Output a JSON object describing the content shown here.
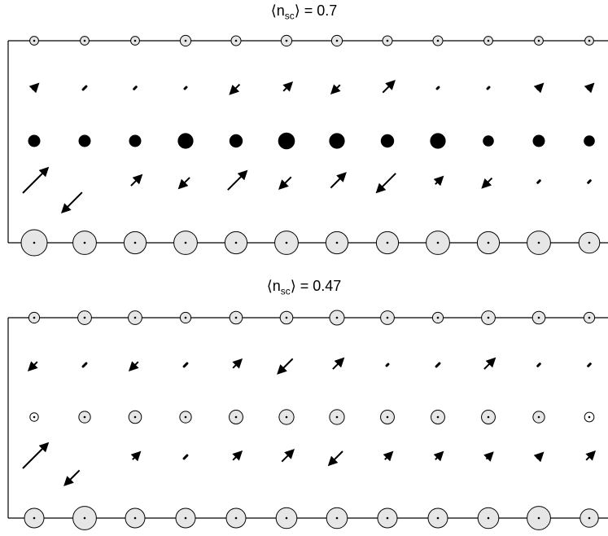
{
  "panels": [
    {
      "title": {
        "left": "⟨n",
        "sub": "sc",
        "right": "⟩ = 0.7"
      },
      "site_fill": "#000000",
      "middle_row_filled": true,
      "top_row_sizes": [
        0.9,
        0.9,
        0.9,
        1.1,
        1.0,
        1.1,
        1.1,
        1.0,
        1.0,
        0.9,
        0.9,
        0.9
      ],
      "middle_row_sizes": [
        1.0,
        1.0,
        1.0,
        1.3,
        1.1,
        1.4,
        1.3,
        1.1,
        1.3,
        0.9,
        1.0,
        0.9
      ],
      "bottom_row_sizes": [
        2.0,
        1.8,
        1.7,
        1.8,
        1.7,
        1.8,
        1.7,
        1.7,
        1.8,
        1.7,
        1.8,
        1.6
      ],
      "spin_row1": [
        [
          1,
          1,
          0.35
        ],
        [
          1,
          1,
          0.3
        ],
        [
          1,
          1,
          0.2
        ],
        [
          1,
          1,
          0.15
        ],
        [
          -1,
          -1,
          0.7
        ],
        [
          1,
          1,
          0.6
        ],
        [
          -1,
          -1,
          0.6
        ],
        [
          1,
          1,
          0.9
        ],
        [
          1,
          1,
          0.15
        ],
        [
          1,
          1,
          0.15
        ],
        [
          1,
          1,
          0.35
        ],
        [
          1,
          1,
          0.35
        ]
      ],
      "spin_row2a": [
        [
          1,
          1,
          2.2
        ],
        [
          1,
          1,
          0.0
        ],
        [
          1,
          1,
          0.8
        ],
        [
          -1,
          -1,
          0.8
        ],
        [
          1,
          1,
          1.6
        ],
        [
          -1,
          -1,
          0.9
        ],
        [
          1,
          1,
          1.2
        ],
        [
          -1,
          -1,
          1.6
        ],
        [
          1,
          1,
          0.5
        ],
        [
          -1,
          -1,
          0.7
        ],
        [
          1,
          1,
          0.2
        ],
        [
          1,
          1,
          0.2
        ]
      ],
      "spin_row2b": [
        [
          -1,
          -1,
          1.7
        ],
        [
          0,
          0,
          0
        ],
        [
          0,
          0,
          0
        ],
        [
          0,
          0,
          0
        ],
        [
          0,
          0,
          0
        ],
        [
          0,
          0,
          0
        ],
        [
          0,
          0,
          0
        ],
        [
          0,
          0,
          0
        ],
        [
          0,
          0,
          0
        ],
        [
          0,
          0,
          0
        ],
        [
          0,
          0,
          0
        ],
        [
          0,
          0,
          0
        ]
      ]
    },
    {
      "title": {
        "left": "⟨n",
        "sub": "sc",
        "right": "⟩ = 0.47"
      },
      "site_fill": "#ffffff",
      "middle_row_filled": false,
      "top_row_sizes": [
        1.1,
        1.4,
        1.4,
        1.1,
        1.3,
        1.3,
        1.5,
        1.4,
        1.1,
        1.4,
        1.3,
        1.1
      ],
      "middle_row_sizes": [
        0.8,
        1.1,
        1.2,
        1.1,
        1.3,
        1.4,
        1.4,
        1.3,
        1.3,
        1.3,
        1.1,
        0.9
      ],
      "bottom_row_sizes": [
        1.5,
        1.8,
        1.5,
        1.5,
        1.5,
        1.6,
        1.6,
        1.5,
        1.5,
        1.6,
        1.8,
        1.4
      ],
      "spin_row1": [
        [
          -1,
          -1,
          0.6
        ],
        [
          1,
          1,
          0.3
        ],
        [
          -1,
          -1,
          0.6
        ],
        [
          1,
          1,
          0.3
        ],
        [
          1,
          1,
          0.6
        ],
        [
          -1,
          -1,
          1.2
        ],
        [
          1,
          1,
          0.8
        ],
        [
          1,
          1,
          0.15
        ],
        [
          1,
          1,
          0.3
        ],
        [
          1,
          1,
          0.8
        ],
        [
          1,
          1,
          0.2
        ],
        [
          1,
          1,
          0.2
        ]
      ],
      "spin_row2a": [
        [
          1,
          1,
          2.2
        ],
        [
          1,
          1,
          0.0
        ],
        [
          1,
          1,
          0.5
        ],
        [
          1,
          1,
          0.3
        ],
        [
          1,
          1,
          0.6
        ],
        [
          1,
          1,
          0.9
        ],
        [
          -1,
          -1,
          1.1
        ],
        [
          1,
          1,
          0.5
        ],
        [
          1,
          1,
          0.5
        ],
        [
          1,
          1,
          0.4
        ],
        [
          1,
          1,
          0.35
        ],
        [
          1,
          1,
          0.6
        ]
      ],
      "spin_row2b": [
        [
          -1,
          -1,
          1.2
        ],
        [
          0,
          0,
          0
        ],
        [
          0,
          0,
          0
        ],
        [
          0,
          0,
          0
        ],
        [
          0,
          0,
          0
        ],
        [
          0,
          0,
          0
        ],
        [
          0,
          0,
          0
        ],
        [
          0,
          0,
          0
        ],
        [
          0,
          0,
          0
        ],
        [
          0,
          0,
          0
        ],
        [
          0,
          0,
          0
        ],
        [
          0,
          0,
          0
        ]
      ]
    }
  ],
  "colors": {
    "line": "#000000",
    "site_light": "#e6e6e6",
    "site_dark": "#000000"
  }
}
